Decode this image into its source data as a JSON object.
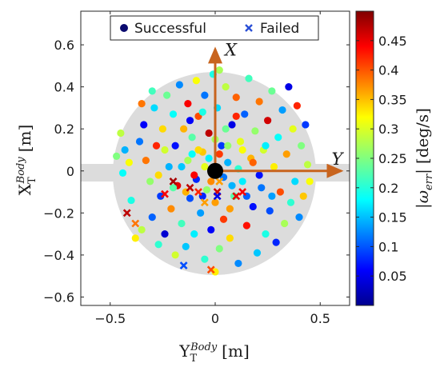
{
  "chart_data": {
    "type": "scatter",
    "xlabel": "Y_T^Body [m]",
    "ylabel": "X_T^Body [m]",
    "colorbar_label": "|ω_err| [deg/s]",
    "xlim": [
      -0.64,
      0.64
    ],
    "ylim": [
      -0.64,
      0.76
    ],
    "xticks": [
      -0.5,
      0,
      0.5
    ],
    "xtick_labels": [
      "−0.5",
      "0",
      "0.5"
    ],
    "yticks": [
      -0.6,
      -0.4,
      -0.2,
      0,
      0.2,
      0.4,
      0.6
    ],
    "ytick_labels": [
      "−0.6",
      "−0.4",
      "−0.2",
      "0",
      "0.2",
      "0.4",
      "0.6"
    ],
    "colorbar": {
      "range": [
        0.0,
        0.5
      ],
      "ticks": [
        0.05,
        0.1,
        0.15,
        0.2,
        0.25,
        0.3,
        0.35,
        0.4,
        0.45
      ],
      "tick_labels": [
        "0.05",
        "0.1",
        "0.15",
        "0.2",
        "0.25",
        "0.3",
        "0.35",
        "0.4",
        "0.45"
      ],
      "colormap": "jet"
    },
    "legend": {
      "position": "top-center",
      "entries": [
        {
          "label": "Successful",
          "marker": "circle",
          "color": "#0a0a6e"
        },
        {
          "label": "Failed",
          "marker": "x",
          "color": "#2a4fd6"
        }
      ]
    },
    "workspace": {
      "disk_radius": 0.49,
      "bar_half_width": 0.04
    },
    "vectors": [
      {
        "label": "X",
        "dx": 0,
        "dy": 0.58,
        "color": "#c8641e"
      },
      {
        "label": "Y",
        "dx": 0.6,
        "dy": 0,
        "color": "#c8641e"
      }
    ],
    "origin_marker": {
      "x": 0,
      "y": 0,
      "color": "#000000"
    },
    "successful": [
      [
        -0.47,
        0.07,
        0.25
      ],
      [
        -0.45,
        0.18,
        0.28
      ],
      [
        -0.44,
        -0.01,
        0.19
      ],
      [
        -0.41,
        0.04,
        0.31
      ],
      [
        -0.4,
        -0.14,
        0.2
      ],
      [
        -0.38,
        -0.32,
        0.32
      ],
      [
        -0.36,
        0.14,
        0.12
      ],
      [
        -0.35,
        -0.28,
        0.28
      ],
      [
        -0.34,
        0.22,
        0.06
      ],
      [
        -0.33,
        0.05,
        0.38
      ],
      [
        -0.31,
        -0.05,
        0.26
      ],
      [
        -0.3,
        -0.22,
        0.11
      ],
      [
        -0.29,
        0.3,
        0.17
      ],
      [
        -0.28,
        0.12,
        0.42
      ],
      [
        -0.27,
        -0.35,
        0.21
      ],
      [
        -0.26,
        -0.12,
        0.09
      ],
      [
        -0.25,
        0.2,
        0.33
      ],
      [
        -0.24,
        -0.3,
        0.04
      ],
      [
        -0.23,
        0.36,
        0.24
      ],
      [
        -0.22,
        0.02,
        0.15
      ],
      [
        -0.21,
        -0.18,
        0.37
      ],
      [
        -0.2,
        0.27,
        0.19
      ],
      [
        -0.19,
        -0.4,
        0.29
      ],
      [
        -0.19,
        0.12,
        0.07
      ],
      [
        -0.18,
        -0.07,
        0.45
      ],
      [
        -0.17,
        0.41,
        0.13
      ],
      [
        -0.16,
        -0.25,
        0.22
      ],
      [
        -0.15,
        0.2,
        0.35
      ],
      [
        -0.14,
        -0.36,
        0.16
      ],
      [
        -0.13,
        0.05,
        0.27
      ],
      [
        -0.13,
        0.32,
        0.44
      ],
      [
        -0.12,
        -0.13,
        0.1
      ],
      [
        -0.11,
        0.16,
        0.23
      ],
      [
        -0.1,
        -0.3,
        0.18
      ],
      [
        -0.09,
        0.43,
        0.31
      ],
      [
        -0.09,
        -0.04,
        0.08
      ],
      [
        -0.08,
        0.26,
        0.4
      ],
      [
        -0.07,
        -0.2,
        0.14
      ],
      [
        -0.06,
        0.09,
        0.34
      ],
      [
        -0.05,
        -0.42,
        0.21
      ],
      [
        -0.05,
        0.36,
        0.12
      ],
      [
        -0.04,
        -0.09,
        0.26
      ],
      [
        -0.03,
        0.18,
        0.47
      ],
      [
        -0.02,
        -0.28,
        0.06
      ],
      [
        -0.01,
        0.46,
        0.2
      ],
      [
        0.0,
        -0.15,
        0.36
      ],
      [
        0.01,
        0.3,
        0.17
      ],
      [
        0.02,
        -0.37,
        0.25
      ],
      [
        0.03,
        0.12,
        0.09
      ],
      [
        0.04,
        -0.23,
        0.41
      ],
      [
        0.05,
        0.4,
        0.28
      ],
      [
        0.06,
        0.04,
        0.15
      ],
      [
        0.07,
        -0.32,
        0.33
      ],
      [
        0.08,
        0.22,
        0.05
      ],
      [
        0.09,
        -0.12,
        0.23
      ],
      [
        0.1,
        0.35,
        0.39
      ],
      [
        0.11,
        -0.44,
        0.13
      ],
      [
        0.12,
        0.14,
        0.3
      ],
      [
        0.13,
        -0.05,
        0.18
      ],
      [
        0.14,
        0.27,
        0.11
      ],
      [
        0.15,
        -0.26,
        0.43
      ],
      [
        0.16,
        0.44,
        0.22
      ],
      [
        0.17,
        0.06,
        0.35
      ],
      [
        0.18,
        -0.17,
        0.07
      ],
      [
        0.19,
        0.19,
        0.26
      ],
      [
        0.2,
        -0.39,
        0.16
      ],
      [
        0.21,
        0.33,
        0.38
      ],
      [
        0.22,
        -0.08,
        0.12
      ],
      [
        0.23,
        0.1,
        0.29
      ],
      [
        0.24,
        -0.3,
        0.2
      ],
      [
        0.25,
        0.24,
        0.46
      ],
      [
        0.26,
        -0.19,
        0.1
      ],
      [
        0.27,
        0.38,
        0.24
      ],
      [
        0.28,
        0.02,
        0.32
      ],
      [
        0.29,
        -0.34,
        0.08
      ],
      [
        0.3,
        0.16,
        0.19
      ],
      [
        0.31,
        -0.1,
        0.4
      ],
      [
        0.32,
        0.29,
        0.14
      ],
      [
        0.33,
        -0.25,
        0.27
      ],
      [
        0.34,
        0.08,
        0.36
      ],
      [
        0.35,
        0.4,
        0.05
      ],
      [
        0.36,
        -0.15,
        0.21
      ],
      [
        0.37,
        0.2,
        0.3
      ],
      [
        0.38,
        -0.05,
        0.17
      ],
      [
        0.39,
        0.31,
        0.42
      ],
      [
        0.4,
        -0.22,
        0.13
      ],
      [
        0.41,
        0.12,
        0.25
      ],
      [
        0.42,
        -0.12,
        0.34
      ],
      [
        0.43,
        0.22,
        0.09
      ],
      [
        0.44,
        0.03,
        0.28
      ],
      [
        -0.3,
        0.38,
        0.22
      ],
      [
        -0.05,
        0.02,
        0.3
      ],
      [
        -0.03,
        0.06,
        0.18
      ],
      [
        0.02,
        0.08,
        0.41
      ],
      [
        0.04,
        -0.03,
        0.12
      ],
      [
        -0.02,
        -0.05,
        0.37
      ],
      [
        0.06,
        0.12,
        0.26
      ],
      [
        -0.08,
        0.1,
        0.33
      ],
      [
        0.08,
        -0.07,
        0.15
      ],
      [
        -0.1,
        -0.02,
        0.44
      ],
      [
        0.11,
        0.01,
        0.21
      ],
      [
        -0.06,
        -0.12,
        0.08
      ],
      [
        0.13,
        0.1,
        0.31
      ],
      [
        -0.11,
        0.08,
        0.19
      ],
      [
        0.0,
        0.15,
        0.27
      ],
      [
        -0.14,
        -0.1,
        0.35
      ],
      [
        0.15,
        -0.12,
        0.11
      ],
      [
        0.05,
        0.2,
        0.24
      ],
      [
        -0.16,
        0.02,
        0.16
      ],
      [
        0.18,
        0.04,
        0.39
      ],
      [
        -0.2,
        -0.08,
        0.23
      ],
      [
        0.21,
        -0.02,
        0.07
      ],
      [
        -0.24,
        0.1,
        0.29
      ],
      [
        0.24,
        0.12,
        0.18
      ],
      [
        -0.27,
        -0.02,
        0.33
      ],
      [
        0.27,
        -0.12,
        0.14
      ],
      [
        -0.06,
        0.28,
        0.2
      ],
      [
        0.07,
        -0.18,
        0.36
      ],
      [
        -0.12,
        0.24,
        0.06
      ],
      [
        0.1,
        0.26,
        0.42
      ],
      [
        0.45,
        -0.05,
        0.31
      ],
      [
        -0.43,
        0.1,
        0.15
      ],
      [
        0.0,
        -0.48,
        0.32
      ],
      [
        0.02,
        0.48,
        0.27
      ],
      [
        -0.35,
        0.32,
        0.38
      ]
    ],
    "failed": [
      [
        -0.42,
        -0.2,
        0.47
      ],
      [
        -0.38,
        -0.25,
        0.38
      ],
      [
        -0.2,
        -0.05,
        0.48
      ],
      [
        -0.12,
        -0.08,
        0.47
      ],
      [
        -0.15,
        -0.45,
        0.1
      ],
      [
        -0.08,
        -0.1,
        0.42
      ],
      [
        -0.05,
        -0.15,
        0.36
      ],
      [
        0.01,
        -0.1,
        0.46
      ],
      [
        0.02,
        -0.05,
        0.36
      ],
      [
        0.01,
        -0.12,
        0.05
      ],
      [
        0.1,
        -0.12,
        0.45
      ],
      [
        0.13,
        -0.1,
        0.44
      ],
      [
        -0.02,
        -0.47,
        0.4
      ],
      [
        -0.24,
        -0.11,
        0.44
      ]
    ]
  }
}
